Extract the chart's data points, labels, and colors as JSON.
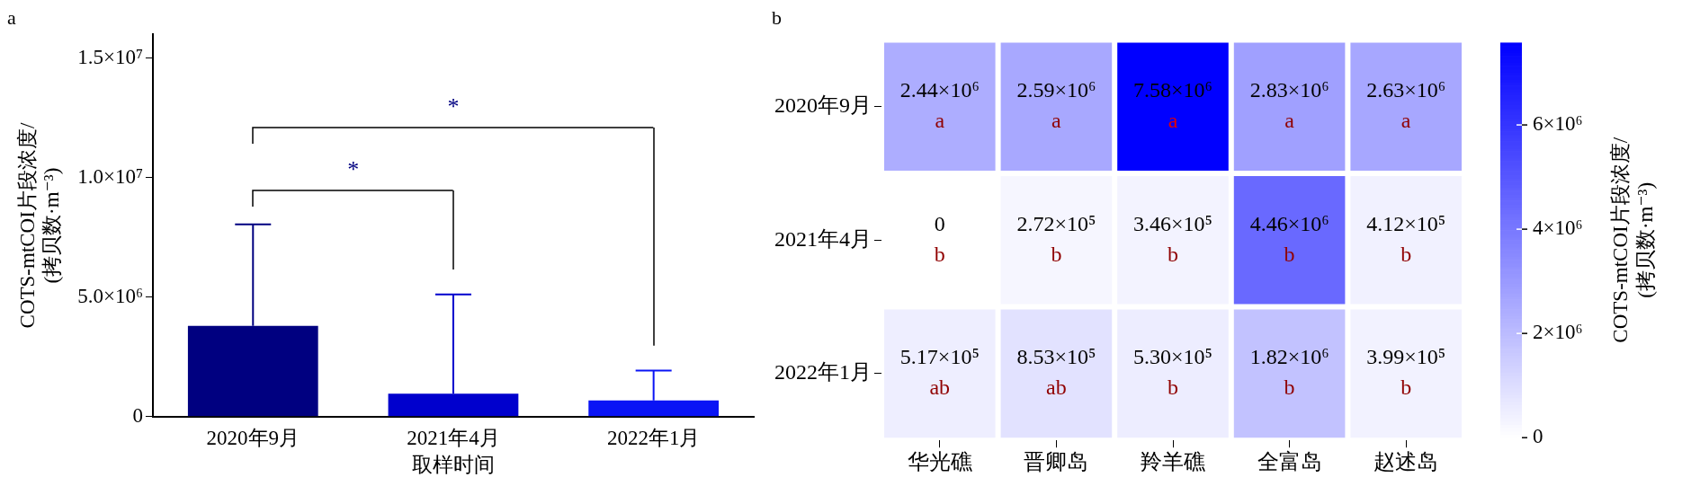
{
  "chart_data": [
    {
      "type": "bar",
      "title": "a",
      "xlabel": "取样时间",
      "ylabel": "COTS-mtCOI片段浓度/\n(拷贝数·m⁻³)",
      "categories": [
        "2020年9月",
        "2021年4月",
        "2022年1月"
      ],
      "values": [
        3800000,
        960000,
        680000
      ],
      "colors": [
        "#000080",
        "#0000cd",
        "#0a14f5"
      ],
      "errors": [
        [
          3800000,
          8050000
        ],
        [
          960000,
          5120000
        ],
        [
          680000,
          1930000
        ]
      ],
      "ylim": [
        0,
        16000000
      ],
      "yticks": [
        0,
        {
          "value": 5000000,
          "label": "5.0×10⁶"
        },
        {
          "value": 10000000,
          "label": "1.0×10⁷"
        },
        {
          "value": 15000000,
          "label": "1.5×10⁷"
        }
      ],
      "grid": false,
      "annotations": [
        "*",
        "*"
      ]
    },
    {
      "type": "heatmap",
      "title": "b",
      "categories": [
        "华光礁",
        "晋卿岛",
        "羚羊礁",
        "全富岛",
        "赵述岛"
      ],
      "y_categories": [
        "2020年9月",
        "2021年4月",
        "2022年1月"
      ],
      "cells": [
        [
          2440000,
          2590000,
          7580000,
          2830000,
          2630000
        ],
        [
          0,
          272000,
          346000,
          4460000,
          412000
        ],
        [
          517000,
          853000,
          530000,
          1820000,
          399000
        ]
      ],
      "cell_labels": [
        [
          "2.44×10⁶\na",
          "2.59×10⁶\na",
          "7.58×10⁶\na",
          "2.83×10⁶\na",
          "2.63×10⁶\na"
        ],
        [
          "0\nb",
          "2.72×10⁵\nb",
          "3.46×10⁵\nb",
          "4.46×10⁶\nb",
          "4.12×10⁵\nb"
        ],
        [
          "5.17×10⁵\nab",
          "8.53×10⁵\nab",
          "5.30×10⁵\nb",
          "1.82×10⁶\nb",
          "3.99×10⁵\nb"
        ]
      ],
      "clim": [
        0,
        7580000
      ],
      "cticks": [
        0,
        {
          "value": 2000000,
          "label": "2×10⁶"
        },
        {
          "value": 4000000,
          "label": "4×10⁶"
        },
        {
          "value": 6000000,
          "label": "6×10⁶"
        }
      ],
      "clabel": "COTS-mtCOI片段浓度/\n(拷贝数·m⁻³)"
    }
  ]
}
